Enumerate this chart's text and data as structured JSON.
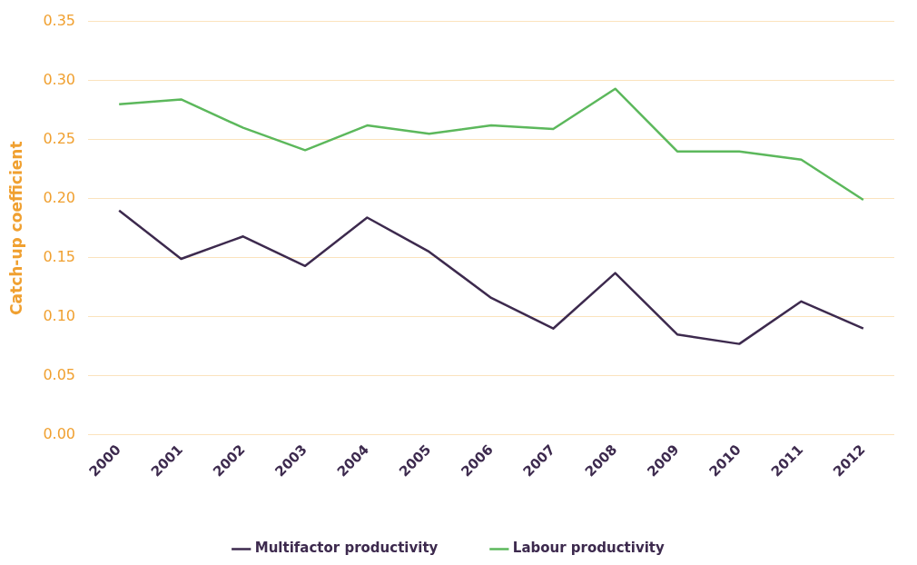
{
  "chart_data": {
    "type": "line",
    "ylabel": "Catch-up coefficient",
    "categories": [
      "2000",
      "2001",
      "2002",
      "2003",
      "2004",
      "2005",
      "2006",
      "2007",
      "2008",
      "2009",
      "2010",
      "2011",
      "2012"
    ],
    "series": [
      {
        "name": "Multifactor productivity",
        "color": "#3d2a4e",
        "values": [
          0.19,
          0.149,
          0.168,
          0.143,
          0.184,
          0.155,
          0.116,
          0.09,
          0.137,
          0.085,
          0.077,
          0.113,
          0.09
        ]
      },
      {
        "name": "Labour productivity",
        "color": "#5cb85c",
        "values": [
          0.28,
          0.284,
          0.26,
          0.241,
          0.262,
          0.255,
          0.262,
          0.259,
          0.293,
          0.24,
          0.24,
          0.233,
          0.199
        ]
      }
    ],
    "ylim": [
      0,
      0.35
    ],
    "yticks": [
      {
        "value": 0,
        "label": "0.00"
      },
      {
        "value": 0.05,
        "label": "0.05"
      },
      {
        "value": 0.1,
        "label": "0.10"
      },
      {
        "value": 0.15,
        "label": "0.15"
      },
      {
        "value": 0.2,
        "label": "0.20"
      },
      {
        "value": 0.25,
        "label": "0.25"
      },
      {
        "value": 0.3,
        "label": "0.30"
      },
      {
        "value": 0.35,
        "label": "0.35"
      }
    ],
    "grid": "y",
    "legend": "bottom",
    "marker": "none",
    "line_style": "solid"
  }
}
